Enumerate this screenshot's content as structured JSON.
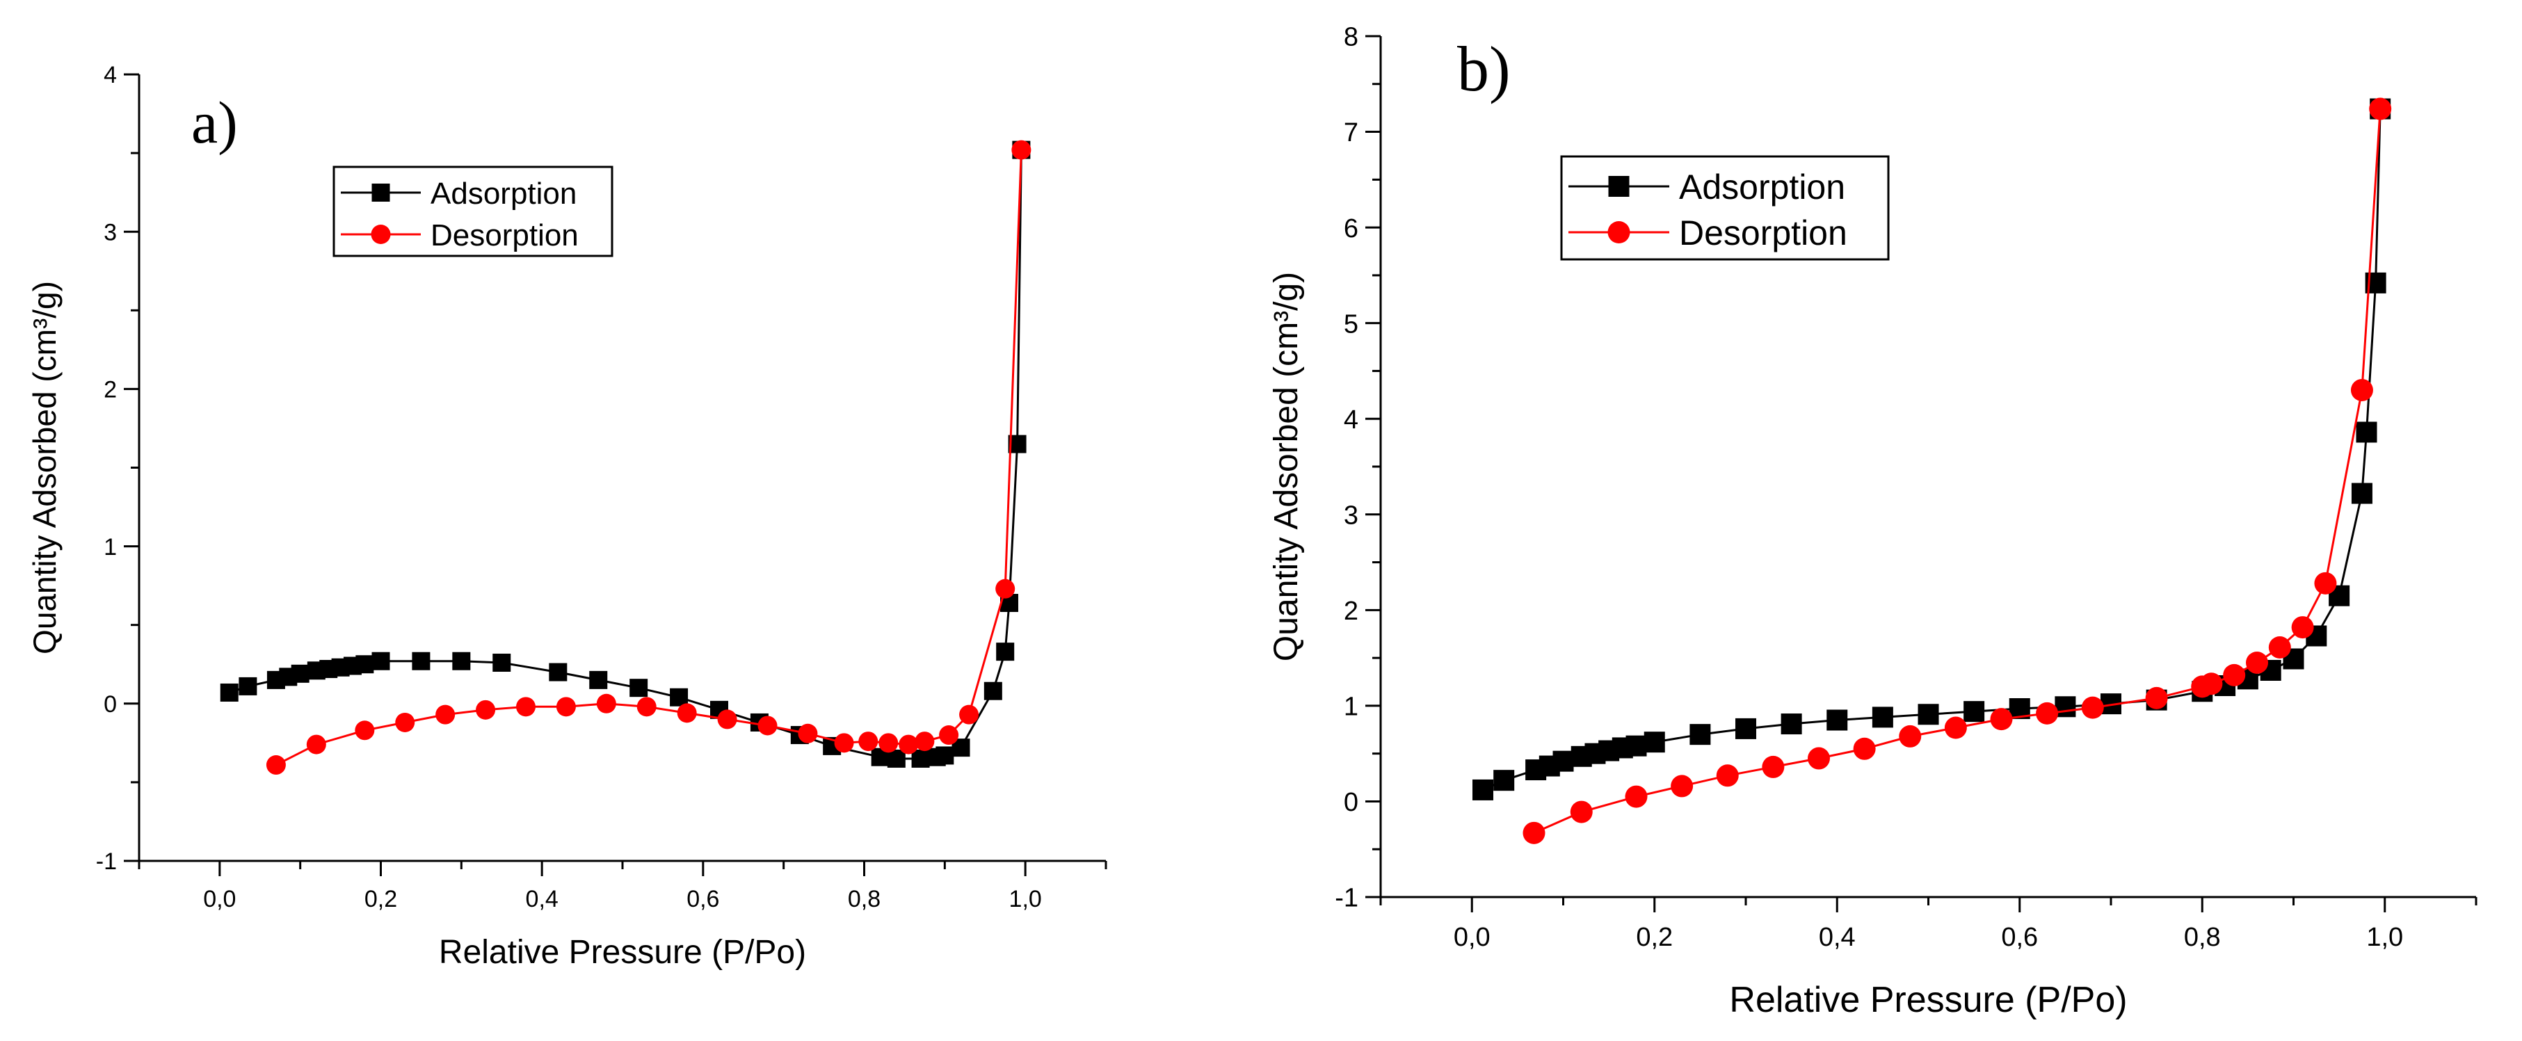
{
  "chart_data": [
    {
      "panel_label": "a)",
      "type": "line",
      "xlabel": "Relative Pressure (P/Po)",
      "ylabel": "Quantity Adsorbed (cm³/g)",
      "xlim": [
        -0.1,
        1.1
      ],
      "ylim": [
        -1,
        4
      ],
      "xticks": [
        "0,0",
        "0,2",
        "0,4",
        "0,6",
        "0,8",
        "1,0"
      ],
      "yticks": [
        "-1",
        "0",
        "1",
        "2",
        "3",
        "4"
      ],
      "legend_position": "top-left",
      "series": [
        {
          "name": "Adsorption",
          "color": "#000000",
          "marker": "square",
          "x": [
            0.012,
            0.035,
            0.07,
            0.085,
            0.1,
            0.12,
            0.135,
            0.15,
            0.165,
            0.18,
            0.2,
            0.25,
            0.3,
            0.35,
            0.42,
            0.47,
            0.52,
            0.57,
            0.62,
            0.67,
            0.72,
            0.76,
            0.82,
            0.84,
            0.87,
            0.89,
            0.9,
            0.92,
            0.96,
            0.975,
            0.98,
            0.99,
            0.995
          ],
          "y": [
            0.07,
            0.11,
            0.15,
            0.17,
            0.19,
            0.21,
            0.22,
            0.23,
            0.24,
            0.25,
            0.27,
            0.27,
            0.27,
            0.26,
            0.2,
            0.15,
            0.1,
            0.04,
            -0.04,
            -0.12,
            -0.2,
            -0.27,
            -0.34,
            -0.35,
            -0.35,
            -0.34,
            -0.33,
            -0.28,
            0.08,
            0.33,
            0.64,
            1.65,
            3.52
          ]
        },
        {
          "name": "Desorption",
          "color": "#ff0000",
          "marker": "circle",
          "x": [
            0.07,
            0.12,
            0.18,
            0.23,
            0.28,
            0.33,
            0.38,
            0.43,
            0.48,
            0.53,
            0.58,
            0.63,
            0.68,
            0.73,
            0.775,
            0.805,
            0.83,
            0.855,
            0.875,
            0.905,
            0.93,
            0.975,
            0.995
          ],
          "y": [
            -0.39,
            -0.26,
            -0.17,
            -0.12,
            -0.07,
            -0.04,
            -0.02,
            -0.02,
            0.0,
            -0.02,
            -0.06,
            -0.1,
            -0.14,
            -0.19,
            -0.25,
            -0.24,
            -0.25,
            -0.26,
            -0.24,
            -0.2,
            -0.07,
            0.73,
            3.52
          ]
        }
      ]
    },
    {
      "panel_label": "b)",
      "type": "line",
      "xlabel": "Relative Pressure (P/Po)",
      "ylabel": "Quantity Adsorbed (cm³/g)",
      "xlim": [
        -0.1,
        1.1
      ],
      "ylim": [
        -1,
        8
      ],
      "xticks": [
        "0,0",
        "0,2",
        "0,4",
        "0,6",
        "0,8",
        "1,0"
      ],
      "yticks": [
        "-1",
        "0",
        "1",
        "2",
        "3",
        "4",
        "5",
        "6",
        "7",
        "8"
      ],
      "legend_position": "top-left",
      "series": [
        {
          "name": "Adsorption",
          "color": "#000000",
          "marker": "square",
          "x": [
            0.012,
            0.035,
            0.07,
            0.085,
            0.1,
            0.12,
            0.135,
            0.15,
            0.165,
            0.18,
            0.2,
            0.25,
            0.3,
            0.35,
            0.4,
            0.45,
            0.5,
            0.55,
            0.6,
            0.65,
            0.7,
            0.75,
            0.8,
            0.825,
            0.85,
            0.875,
            0.9,
            0.925,
            0.95,
            0.975,
            0.98,
            0.99,
            0.995
          ],
          "y": [
            0.12,
            0.22,
            0.33,
            0.37,
            0.42,
            0.47,
            0.5,
            0.53,
            0.56,
            0.58,
            0.62,
            0.7,
            0.76,
            0.81,
            0.85,
            0.88,
            0.91,
            0.94,
            0.97,
            0.99,
            1.02,
            1.06,
            1.15,
            1.21,
            1.28,
            1.37,
            1.49,
            1.73,
            2.15,
            3.22,
            3.86,
            5.42,
            7.24
          ]
        },
        {
          "name": "Desorption",
          "color": "#ff0000",
          "marker": "circle",
          "x": [
            0.068,
            0.12,
            0.18,
            0.23,
            0.28,
            0.33,
            0.38,
            0.43,
            0.48,
            0.53,
            0.58,
            0.63,
            0.68,
            0.75,
            0.8,
            0.81,
            0.835,
            0.86,
            0.885,
            0.91,
            0.935,
            0.975,
            0.995
          ],
          "y": [
            -0.33,
            -0.11,
            0.05,
            0.16,
            0.27,
            0.36,
            0.45,
            0.55,
            0.68,
            0.77,
            0.86,
            0.92,
            0.98,
            1.08,
            1.2,
            1.23,
            1.32,
            1.45,
            1.61,
            1.82,
            2.28,
            4.3,
            7.24
          ]
        }
      ]
    }
  ]
}
